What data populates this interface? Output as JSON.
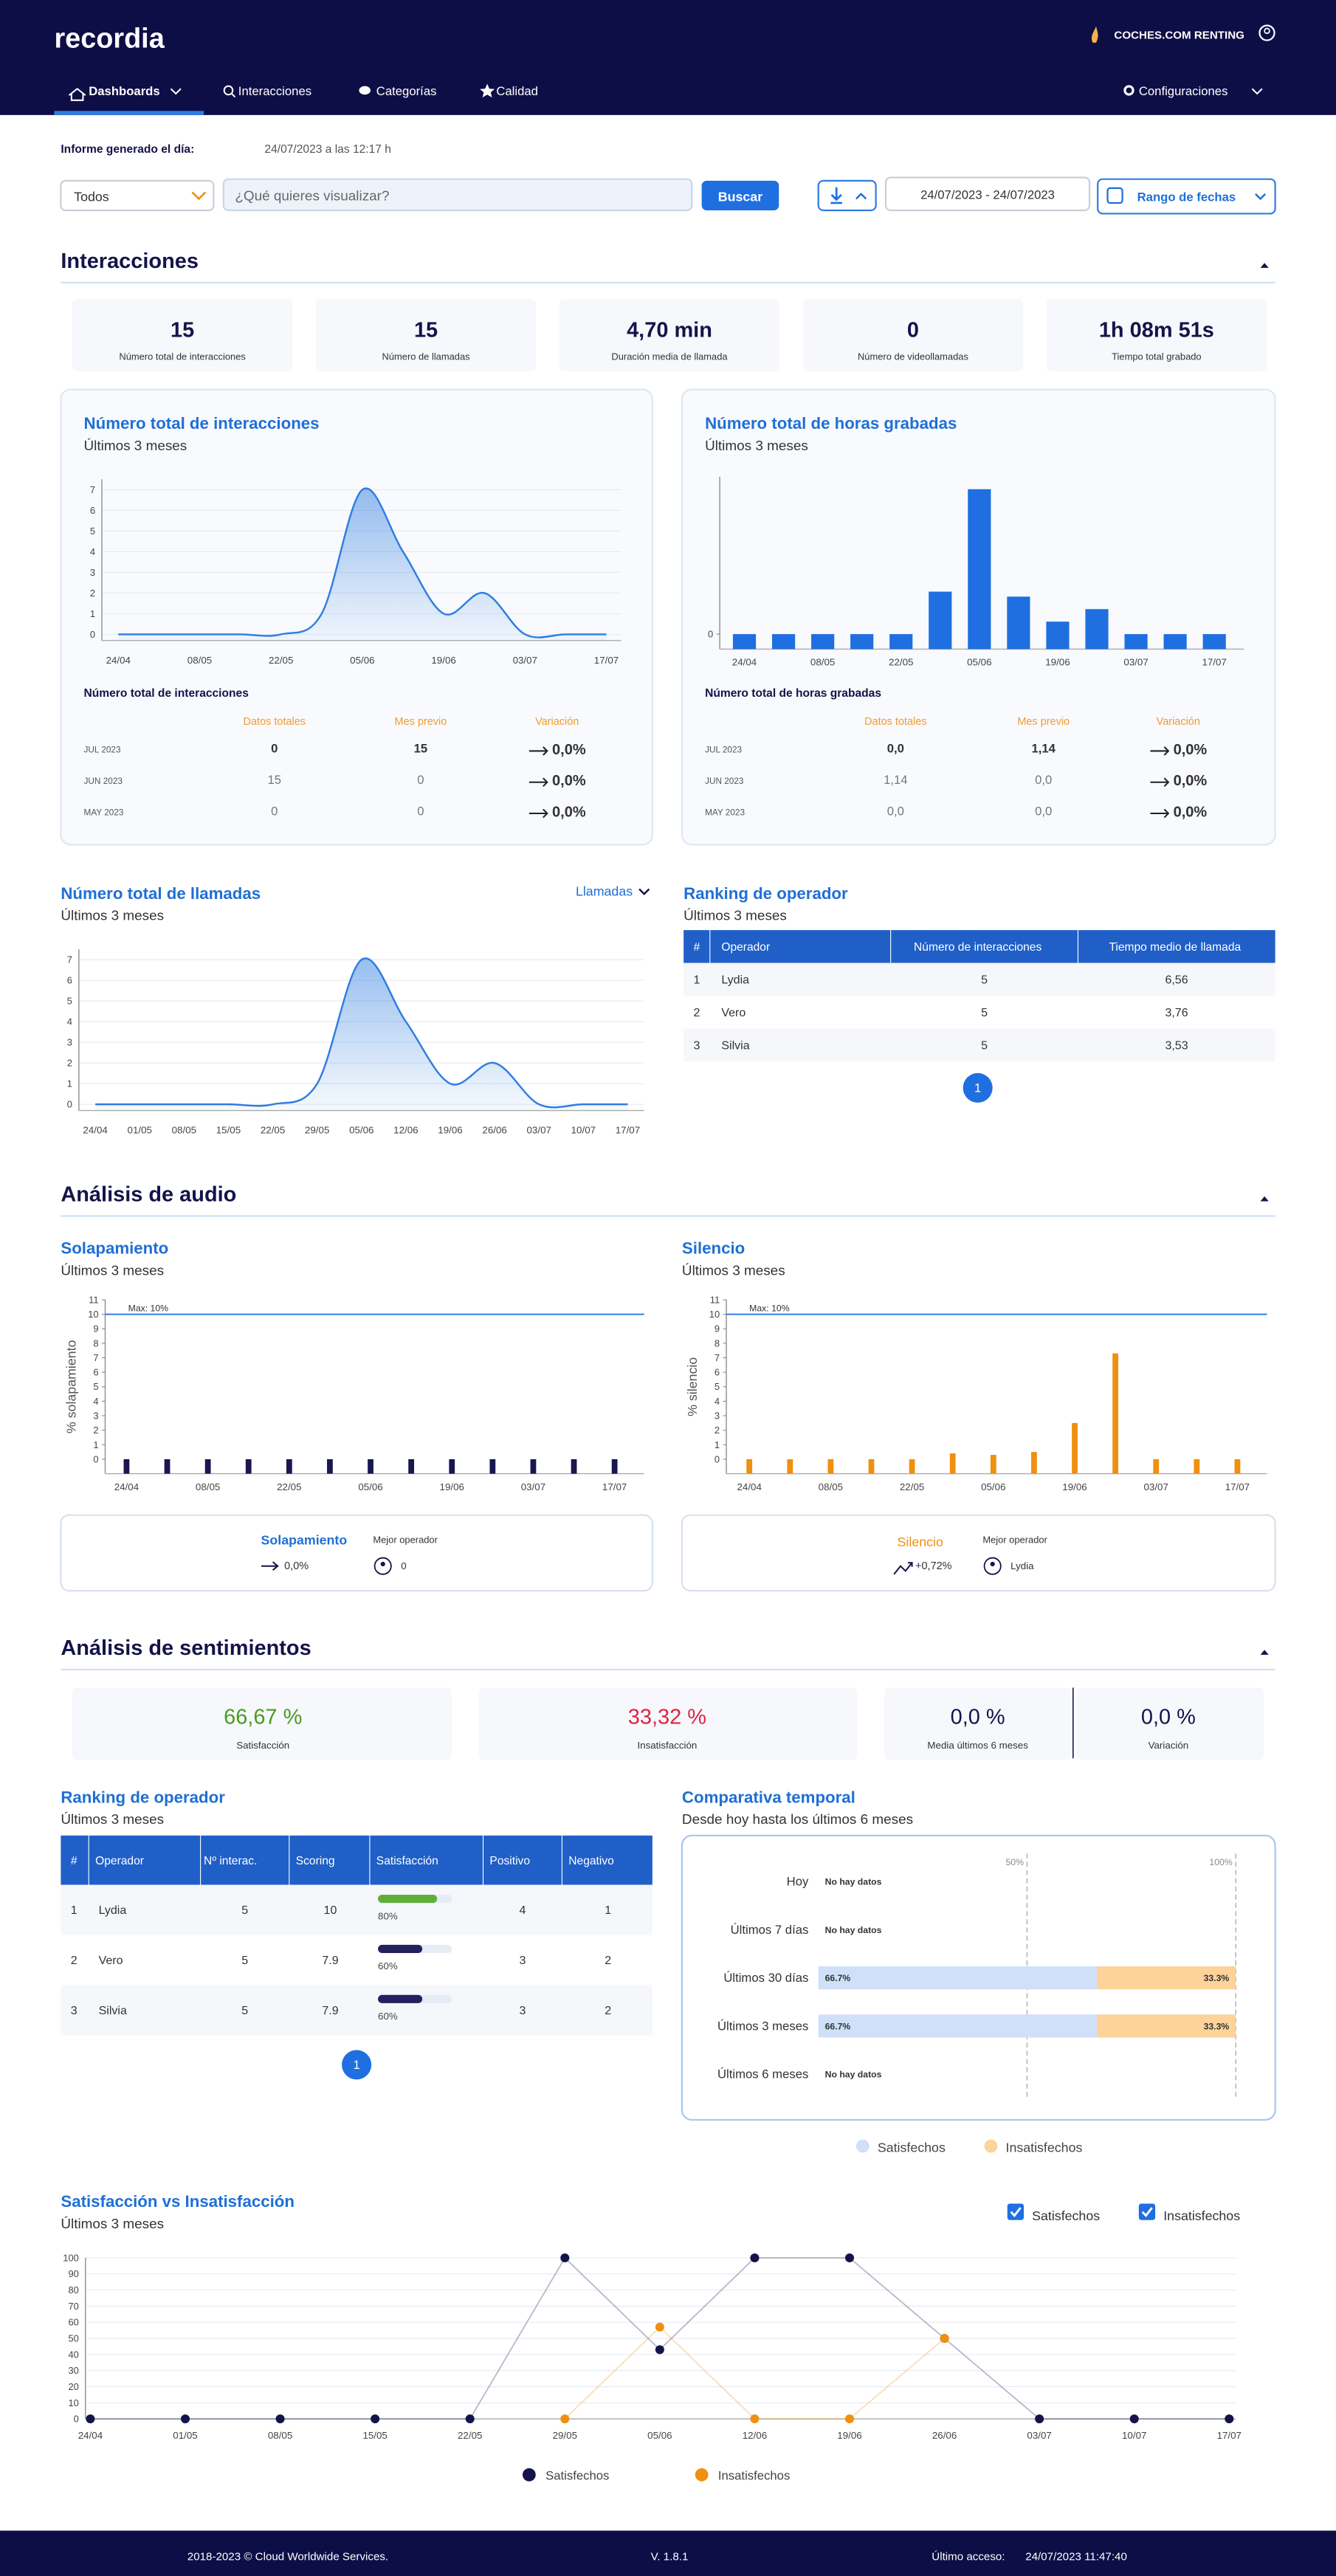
{
  "header": {
    "logo": "recordia",
    "account": "COCHES.COM RENTING"
  },
  "nav": {
    "items": [
      "Dashboards",
      "Interacciones",
      "Categorías",
      "Calidad"
    ],
    "settings": "Configuraciones"
  },
  "report": {
    "label": "Informe generado el día:",
    "value": "24/07/2023 a las 12:17 h"
  },
  "filters": {
    "select": "Todos",
    "search_placeholder": "¿Qué quieres visualizar?",
    "search_button": "Buscar",
    "date_range": "24/07/2023 - 24/07/2023",
    "range_button": "Rango de fechas"
  },
  "interacciones": {
    "title": "Interacciones",
    "kpis": [
      {
        "value": 15,
        "label": "Número total de interacciones"
      },
      {
        "value": 15,
        "label": "Número de llamadas"
      },
      {
        "value": "4,70 min",
        "label": "Duración media de llamada"
      },
      {
        "value": 0,
        "label": "Número de videollamadas"
      },
      {
        "value": "1h 08m 51s",
        "label": "Tiempo total grabado"
      }
    ],
    "interactions_chart": {
      "type": "line",
      "title": "Número total de interacciones",
      "subtitle": "Últimos 3 meses",
      "categories": [
        "24/04",
        null,
        "08/05",
        null,
        "22/05",
        null,
        "05/06",
        null,
        "19/06",
        null,
        "03/07",
        null,
        "17/07"
      ],
      "values": [
        0,
        0,
        0,
        0,
        0,
        1,
        7,
        4,
        1,
        2,
        0,
        0,
        0
      ],
      "color": "#2f7de1",
      "ylim": [
        -0.3,
        7.5
      ],
      "yticks": [
        0,
        1,
        2,
        3,
        4,
        5,
        6,
        7
      ],
      "grid": true,
      "table": {
        "title": "Número total de interacciones",
        "columns": [
          "Datos totales",
          "Mes previo",
          "Variación"
        ],
        "rows": [
          [
            "JUL 2023",
            0,
            15,
            "0,0%"
          ],
          [
            "JUN 2023",
            15,
            0,
            "0,0%"
          ],
          [
            "MAY 2023",
            0,
            0,
            "0,0%"
          ]
        ]
      }
    },
    "hours_chart": {
      "type": "bar",
      "title": "Número total de horas grabadas",
      "subtitle": "Últimos 3 meses",
      "categories": [
        "24/04",
        null,
        "08/05",
        null,
        "22/05",
        null,
        "05/06",
        null,
        "19/06",
        null,
        "03/07",
        null,
        "17/07"
      ],
      "values": [
        0,
        0,
        0,
        0,
        0,
        0.17,
        0.58,
        0.15,
        0.05,
        0.1,
        0,
        0,
        0
      ],
      "color": "#1f6fe0",
      "ylim": [
        -0.06,
        0.63
      ],
      "yticks": [
        0
      ],
      "grid": false,
      "table": {
        "title": "Número total de horas grabadas",
        "columns": [
          "Datos totales",
          "Mes previo",
          "Variación"
        ],
        "rows": [
          [
            "JUL 2023",
            "0,0",
            "1,14",
            "0,0%"
          ],
          [
            "JUN 2023",
            "1,14",
            "0,0",
            "0,0%"
          ],
          [
            "MAY 2023",
            "0,0",
            "0,0",
            "0,0%"
          ]
        ]
      }
    },
    "calls_chart": {
      "type": "line",
      "title": "Número total de llamadas",
      "subtitle": "Últimos 3 meses",
      "selector": "Llamadas",
      "categories": [
        "24/04",
        "01/05",
        "08/05",
        "15/05",
        "22/05",
        "29/05",
        "05/06",
        "12/06",
        "19/06",
        "26/06",
        "03/07",
        "10/07",
        "17/07"
      ],
      "values": [
        0,
        0,
        0,
        0,
        0,
        1,
        7,
        4,
        1,
        2,
        0,
        0,
        0
      ],
      "color": "#2f7de1",
      "ylim": [
        -0.3,
        7.5
      ],
      "yticks": [
        0,
        1,
        2,
        3,
        4,
        5,
        6,
        7
      ],
      "grid": true
    },
    "operator_ranking": {
      "title": "Ranking de operador",
      "subtitle": "Últimos 3 meses",
      "columns": [
        "#",
        "Operador",
        "Número de interacciones",
        "Tiempo medio de llamada"
      ],
      "rows": [
        [
          1,
          "Lydia",
          5,
          "6,56"
        ],
        [
          2,
          "Vero",
          5,
          "3,76"
        ],
        [
          3,
          "Silvia",
          5,
          "3,53"
        ]
      ],
      "page": 1
    }
  },
  "audio": {
    "title": "Análisis de audio",
    "overlap_chart": {
      "type": "bar",
      "title": "Solapamiento",
      "subtitle": "Últimos 3 meses",
      "y_label": "% solapamiento",
      "categories": [
        "24/04",
        null,
        "08/05",
        null,
        "22/05",
        null,
        "05/06",
        null,
        "19/06",
        null,
        "03/07",
        null,
        "17/07"
      ],
      "values": [
        0,
        0,
        0,
        0,
        0,
        0,
        0,
        0,
        0,
        0,
        0,
        0,
        0
      ],
      "color": "#1a1650",
      "ylim": [
        -1,
        11
      ],
      "yticks": [
        0,
        1,
        2,
        3,
        4,
        5,
        6,
        7,
        8,
        9,
        10,
        11
      ],
      "grid": false,
      "max_line": {
        "value": 10,
        "label": "Max: 10%",
        "color": "#2f7de1"
      },
      "summary": {
        "title": "Solapamiento",
        "value": "0,0%",
        "best_label": "Mejor operador",
        "best": "0"
      }
    },
    "silence_chart": {
      "type": "bar",
      "title": "Silencio",
      "subtitle": "Últimos 3 meses",
      "y_label": "% silencio",
      "categories": [
        "24/04",
        null,
        "08/05",
        null,
        "22/05",
        null,
        "05/06",
        null,
        "19/06",
        null,
        "03/07",
        null,
        "17/07"
      ],
      "values": [
        0,
        0,
        0,
        0,
        0,
        0.4,
        0.3,
        0.5,
        2.5,
        7.3,
        0,
        0,
        0
      ],
      "color": "#f0900f",
      "ylim": [
        -1,
        11
      ],
      "yticks": [
        0,
        1,
        2,
        3,
        4,
        5,
        6,
        7,
        8,
        9,
        10,
        11
      ],
      "grid": false,
      "max_line": {
        "value": 10,
        "label": "Max: 10%",
        "color": "#2f7de1"
      },
      "summary": {
        "title": "Silencio",
        "value": "+0,72%",
        "best_label": "Mejor operador",
        "best": "Lydia"
      }
    }
  },
  "sentiment": {
    "title": "Análisis de sentimientos",
    "kpis": [
      {
        "value": "66,67 %",
        "label": "Satisfacción",
        "color": "#4a9a1e"
      },
      {
        "value": "33,32 %",
        "label": "Insatisfacción",
        "color": "#e0233f"
      },
      {
        "value": "0,0 %",
        "label": "Media últimos 6 meses",
        "color": "#14134a"
      },
      {
        "value": "0,0 %",
        "label": "Variación",
        "color": "#14134a"
      }
    ],
    "operator_ranking": {
      "title": "Ranking de operador",
      "subtitle": "Últimos 3 meses",
      "columns": [
        "#",
        "Operador",
        "Nº interac.",
        "Scoring",
        "Satisfacción",
        "Positivo",
        "Negativo"
      ],
      "rows": [
        [
          1,
          "Lydia",
          5,
          10,
          {
            "value": 80,
            "label": "80%"
          },
          4,
          1
        ],
        [
          2,
          "Vero",
          5,
          7.9,
          {
            "value": 60,
            "label": "60%"
          },
          3,
          2
        ],
        [
          3,
          "Silvia",
          5,
          7.9,
          {
            "value": 60,
            "label": "60%"
          },
          3,
          2
        ]
      ],
      "page": 1
    },
    "comparison": {
      "type": "hbar",
      "title": "Comparativa temporal",
      "subtitle": "Desde hoy hasta los últimos 6 meses",
      "categories": [
        "Hoy",
        "Últimos 7 días",
        "Últimos 30 días",
        "Últimos 3 meses",
        "Últimos 6 meses"
      ],
      "series": [
        {
          "name": "Satisfechos",
          "color": "#cfe0f8",
          "values": [
            null,
            null,
            66.7,
            66.7,
            null
          ],
          "value_labels": [
            null,
            null,
            "66.7%",
            "66.7%",
            null
          ]
        },
        {
          "name": "Insatisfechos",
          "color": "#fdd39a",
          "values": [
            null,
            null,
            33.3,
            33.3,
            null
          ],
          "value_labels": [
            null,
            null,
            "33.3%",
            "33.3%",
            null
          ]
        }
      ],
      "no_data": "No hay datos",
      "xlim": [
        0,
        100
      ],
      "xticks": [
        {
          "value": 50,
          "label": "50%"
        },
        {
          "value": 100,
          "label": "100%"
        }
      ]
    },
    "satisfaction_chart": {
      "type": "line",
      "title": "Satisfacción vs Insatisfacción",
      "subtitle": "Últimos 3 meses",
      "categories": [
        "24/04",
        "01/05",
        "08/05",
        "15/05",
        "22/05",
        "29/05",
        "05/06",
        "12/06",
        "19/06",
        "26/06",
        "03/07",
        "10/07",
        "17/07"
      ],
      "series": [
        {
          "name": "Satisfechos",
          "color": "#14134a",
          "values": [
            0,
            0,
            0,
            0,
            0,
            100,
            43,
            100,
            100,
            50,
            0,
            0,
            0
          ]
        },
        {
          "name": "Insatisfechos",
          "color": "#f0900f",
          "values": [
            null,
            null,
            null,
            null,
            null,
            0,
            57,
            0,
            0,
            50,
            null,
            null,
            null
          ]
        }
      ],
      "ylim": [
        0,
        100
      ],
      "yticks": [
        0,
        10,
        20,
        30,
        40,
        50,
        60,
        70,
        80,
        90,
        100
      ],
      "grid": true
    }
  },
  "footer": {
    "copyright": "2018-2023 © Cloud Worldwide Services.",
    "version": "V. 1.8.1",
    "last_access_label": "Último acceso:",
    "last_access": "24/07/2023 11:47:40"
  }
}
